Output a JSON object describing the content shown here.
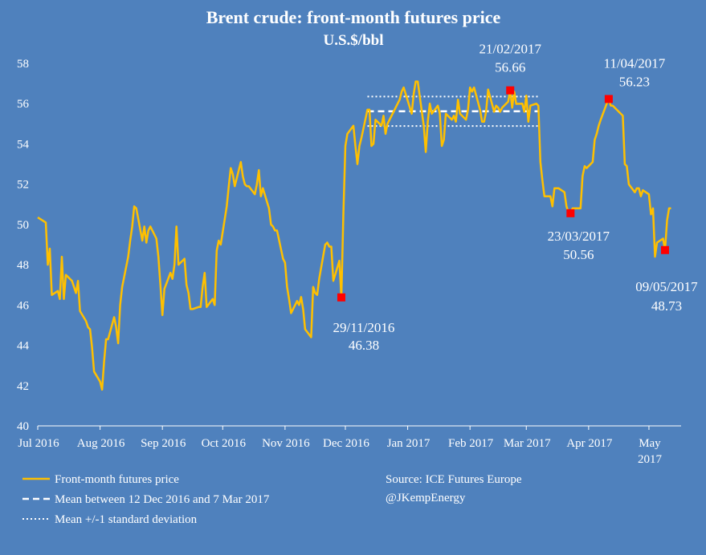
{
  "chart_data": {
    "type": "line",
    "title": "Brent crude: front-month futures price",
    "subtitle": "U.S.$/bbl",
    "ylim": [
      40,
      58
    ],
    "yticks": [
      40,
      42,
      44,
      46,
      48,
      50,
      52,
      54,
      56,
      58
    ],
    "xlim": [
      "2016-07-01",
      "2017-05-17"
    ],
    "grid": false,
    "x_ticks": [
      {
        "date": "2016-07-01",
        "label": "Jul 2016"
      },
      {
        "date": "2016-08-01",
        "label": "Aug 2016"
      },
      {
        "date": "2016-09-01",
        "label": "Sep 2016"
      },
      {
        "date": "2016-10-01",
        "label": "Oct 2016"
      },
      {
        "date": "2016-11-01",
        "label": "Nov 2016"
      },
      {
        "date": "2016-12-01",
        "label": "Dec 2016"
      },
      {
        "date": "2017-01-01",
        "label": "Jan 2017"
      },
      {
        "date": "2017-02-01",
        "label": "Feb 2017"
      },
      {
        "date": "2017-03-01",
        "label": "Mar 2017"
      },
      {
        "date": "2017-04-01",
        "label": "Apr 2017"
      },
      {
        "date": "2017-05-01",
        "label": "May 2017"
      }
    ],
    "series": [
      {
        "name": "Front-month futures price",
        "color": "#ffc000",
        "points": [
          [
            "2016-07-01",
            50.35
          ],
          [
            "2016-07-05",
            50.1
          ],
          [
            "2016-07-06",
            48.0
          ],
          [
            "2016-07-07",
            48.8
          ],
          [
            "2016-07-08",
            46.5
          ],
          [
            "2016-07-11",
            46.7
          ],
          [
            "2016-07-12",
            46.3
          ],
          [
            "2016-07-13",
            48.4
          ],
          [
            "2016-07-14",
            46.3
          ],
          [
            "2016-07-15",
            47.5
          ],
          [
            "2016-07-18",
            47.2
          ],
          [
            "2016-07-19",
            46.9
          ],
          [
            "2016-07-20",
            46.6
          ],
          [
            "2016-07-21",
            47.2
          ],
          [
            "2016-07-22",
            45.7
          ],
          [
            "2016-07-25",
            45.2
          ],
          [
            "2016-07-26",
            44.9
          ],
          [
            "2016-07-27",
            44.8
          ],
          [
            "2016-07-28",
            43.9
          ],
          [
            "2016-07-29",
            42.7
          ],
          [
            "2016-08-01",
            42.2
          ],
          [
            "2016-08-02",
            41.8
          ],
          [
            "2016-08-03",
            43.2
          ],
          [
            "2016-08-04",
            44.3
          ],
          [
            "2016-08-05",
            44.3
          ],
          [
            "2016-08-08",
            45.4
          ],
          [
            "2016-08-09",
            44.9
          ],
          [
            "2016-08-10",
            44.1
          ],
          [
            "2016-08-11",
            46.0
          ],
          [
            "2016-08-12",
            46.9
          ],
          [
            "2016-08-15",
            48.4
          ],
          [
            "2016-08-16",
            49.2
          ],
          [
            "2016-08-17",
            49.9
          ],
          [
            "2016-08-18",
            50.9
          ],
          [
            "2016-08-19",
            50.8
          ],
          [
            "2016-08-22",
            49.2
          ],
          [
            "2016-08-23",
            49.9
          ],
          [
            "2016-08-24",
            49.1
          ],
          [
            "2016-08-25",
            49.7
          ],
          [
            "2016-08-26",
            49.9
          ],
          [
            "2016-08-29",
            49.3
          ],
          [
            "2016-08-30",
            48.4
          ],
          [
            "2016-08-31",
            47.0
          ],
          [
            "2016-09-01",
            45.5
          ],
          [
            "2016-09-02",
            46.8
          ],
          [
            "2016-09-05",
            47.6
          ],
          [
            "2016-09-06",
            47.3
          ],
          [
            "2016-09-07",
            48.0
          ],
          [
            "2016-09-08",
            49.9
          ],
          [
            "2016-09-09",
            48.0
          ],
          [
            "2016-09-12",
            48.3
          ],
          [
            "2016-09-13",
            47.0
          ],
          [
            "2016-09-14",
            46.6
          ],
          [
            "2016-09-15",
            45.8
          ],
          [
            "2016-09-16",
            45.8
          ],
          [
            "2016-09-19",
            45.9
          ],
          [
            "2016-09-20",
            45.9
          ],
          [
            "2016-09-21",
            46.9
          ],
          [
            "2016-09-22",
            47.6
          ],
          [
            "2016-09-23",
            45.9
          ],
          [
            "2016-09-26",
            46.3
          ],
          [
            "2016-09-27",
            46.0
          ],
          [
            "2016-09-28",
            48.7
          ],
          [
            "2016-09-29",
            49.2
          ],
          [
            "2016-09-30",
            49.0
          ],
          [
            "2016-10-03",
            50.9
          ],
          [
            "2016-10-04",
            51.9
          ],
          [
            "2016-10-05",
            52.8
          ],
          [
            "2016-10-06",
            52.5
          ],
          [
            "2016-10-07",
            51.9
          ],
          [
            "2016-10-10",
            53.1
          ],
          [
            "2016-10-11",
            52.4
          ],
          [
            "2016-10-12",
            52.0
          ],
          [
            "2016-10-13",
            51.9
          ],
          [
            "2016-10-14",
            51.9
          ],
          [
            "2016-10-17",
            51.5
          ],
          [
            "2016-10-18",
            52.0
          ],
          [
            "2016-10-19",
            52.7
          ],
          [
            "2016-10-20",
            51.4
          ],
          [
            "2016-10-21",
            51.8
          ],
          [
            "2016-10-24",
            50.8
          ],
          [
            "2016-10-25",
            50.0
          ],
          [
            "2016-10-26",
            49.9
          ],
          [
            "2016-10-27",
            49.7
          ],
          [
            "2016-10-28",
            49.7
          ],
          [
            "2016-10-31",
            48.3
          ],
          [
            "2016-11-01",
            48.1
          ],
          [
            "2016-11-02",
            46.9
          ],
          [
            "2016-11-03",
            46.3
          ],
          [
            "2016-11-04",
            45.6
          ],
          [
            "2016-11-07",
            46.2
          ],
          [
            "2016-11-08",
            46.0
          ],
          [
            "2016-11-09",
            46.4
          ],
          [
            "2016-11-10",
            45.8
          ],
          [
            "2016-11-11",
            44.8
          ],
          [
            "2016-11-14",
            44.4
          ],
          [
            "2016-11-15",
            46.9
          ],
          [
            "2016-11-16",
            46.6
          ],
          [
            "2016-11-17",
            46.5
          ],
          [
            "2016-11-18",
            47.3
          ],
          [
            "2016-11-21",
            49.0
          ],
          [
            "2016-11-22",
            49.1
          ],
          [
            "2016-11-23",
            48.9
          ],
          [
            "2016-11-24",
            48.9
          ],
          [
            "2016-11-25",
            47.2
          ],
          [
            "2016-11-28",
            48.2
          ],
          [
            "2016-11-29",
            46.38
          ],
          [
            "2016-11-30",
            50.5
          ],
          [
            "2016-12-01",
            53.9
          ],
          [
            "2016-12-02",
            54.5
          ],
          [
            "2016-12-05",
            54.9
          ],
          [
            "2016-12-06",
            53.9
          ],
          [
            "2016-12-07",
            53.0
          ],
          [
            "2016-12-08",
            53.9
          ],
          [
            "2016-12-09",
            54.3
          ],
          [
            "2016-12-12",
            55.7
          ],
          [
            "2016-12-13",
            55.7
          ],
          [
            "2016-12-14",
            53.9
          ],
          [
            "2016-12-15",
            54.0
          ],
          [
            "2016-12-16",
            55.2
          ],
          [
            "2016-12-19",
            54.9
          ],
          [
            "2016-12-20",
            55.4
          ],
          [
            "2016-12-21",
            54.5
          ],
          [
            "2016-12-22",
            55.0
          ],
          [
            "2016-12-23",
            55.2
          ],
          [
            "2016-12-28",
            56.2
          ],
          [
            "2016-12-29",
            56.6
          ],
          [
            "2016-12-30",
            56.8
          ],
          [
            "2017-01-03",
            55.5
          ],
          [
            "2017-01-04",
            56.5
          ],
          [
            "2017-01-05",
            57.1
          ],
          [
            "2017-01-06",
            57.1
          ],
          [
            "2017-01-09",
            54.9
          ],
          [
            "2017-01-10",
            53.6
          ],
          [
            "2017-01-11",
            55.1
          ],
          [
            "2017-01-12",
            56.0
          ],
          [
            "2017-01-13",
            55.5
          ],
          [
            "2017-01-16",
            55.9
          ],
          [
            "2017-01-17",
            55.5
          ],
          [
            "2017-01-18",
            53.9
          ],
          [
            "2017-01-19",
            54.2
          ],
          [
            "2017-01-20",
            55.5
          ],
          [
            "2017-01-23",
            55.2
          ],
          [
            "2017-01-24",
            55.4
          ],
          [
            "2017-01-25",
            55.1
          ],
          [
            "2017-01-26",
            56.2
          ],
          [
            "2017-01-27",
            55.5
          ],
          [
            "2017-01-30",
            55.2
          ],
          [
            "2017-01-31",
            55.7
          ],
          [
            "2017-02-01",
            56.8
          ],
          [
            "2017-02-02",
            56.6
          ],
          [
            "2017-02-03",
            56.8
          ],
          [
            "2017-02-06",
            55.7
          ],
          [
            "2017-02-07",
            55.1
          ],
          [
            "2017-02-08",
            55.1
          ],
          [
            "2017-02-09",
            55.6
          ],
          [
            "2017-02-10",
            56.7
          ],
          [
            "2017-02-13",
            55.6
          ],
          [
            "2017-02-14",
            55.9
          ],
          [
            "2017-02-15",
            55.8
          ],
          [
            "2017-02-16",
            55.6
          ],
          [
            "2017-02-17",
            55.8
          ],
          [
            "2017-02-20",
            56.1
          ],
          [
            "2017-02-21",
            56.66
          ],
          [
            "2017-02-22",
            55.8
          ],
          [
            "2017-02-23",
            56.6
          ],
          [
            "2017-02-24",
            55.99
          ],
          [
            "2017-02-27",
            56.0
          ],
          [
            "2017-02-28",
            55.6
          ],
          [
            "2017-03-01",
            56.4
          ],
          [
            "2017-03-02",
            55.1
          ],
          [
            "2017-03-03",
            55.9
          ],
          [
            "2017-03-06",
            56.0
          ],
          [
            "2017-03-07",
            55.9
          ],
          [
            "2017-03-08",
            53.1
          ],
          [
            "2017-03-09",
            52.2
          ],
          [
            "2017-03-10",
            51.4
          ],
          [
            "2017-03-13",
            51.4
          ],
          [
            "2017-03-14",
            50.9
          ],
          [
            "2017-03-15",
            51.8
          ],
          [
            "2017-03-16",
            51.8
          ],
          [
            "2017-03-17",
            51.8
          ],
          [
            "2017-03-20",
            51.6
          ],
          [
            "2017-03-21",
            50.9
          ],
          [
            "2017-03-22",
            50.6
          ],
          [
            "2017-03-23",
            50.56
          ],
          [
            "2017-03-24",
            50.8
          ],
          [
            "2017-03-27",
            50.8
          ],
          [
            "2017-03-28",
            50.8
          ],
          [
            "2017-03-29",
            52.4
          ],
          [
            "2017-03-30",
            52.9
          ],
          [
            "2017-03-31",
            52.8
          ],
          [
            "2017-04-03",
            53.1
          ],
          [
            "2017-04-04",
            54.2
          ],
          [
            "2017-04-05",
            54.5
          ],
          [
            "2017-04-06",
            54.9
          ],
          [
            "2017-04-07",
            55.2
          ],
          [
            "2017-04-10",
            56.0
          ],
          [
            "2017-04-11",
            56.23
          ],
          [
            "2017-04-12",
            55.9
          ],
          [
            "2017-04-13",
            55.9
          ],
          [
            "2017-04-18",
            55.4
          ],
          [
            "2017-04-19",
            53.0
          ],
          [
            "2017-04-20",
            52.9
          ],
          [
            "2017-04-21",
            52.0
          ],
          [
            "2017-04-24",
            51.6
          ],
          [
            "2017-04-25",
            51.8
          ],
          [
            "2017-04-26",
            51.8
          ],
          [
            "2017-04-27",
            51.4
          ],
          [
            "2017-04-28",
            51.7
          ],
          [
            "2017-05-01",
            51.5
          ],
          [
            "2017-05-02",
            50.5
          ],
          [
            "2017-05-03",
            50.8
          ],
          [
            "2017-05-04",
            48.4
          ],
          [
            "2017-05-05",
            49.1
          ],
          [
            "2017-05-08",
            49.3
          ],
          [
            "2017-05-09",
            48.73
          ],
          [
            "2017-05-10",
            50.2
          ],
          [
            "2017-05-11",
            50.8
          ],
          [
            "2017-05-12",
            50.8
          ]
        ]
      }
    ],
    "reference_lines": {
      "start": "2016-12-12",
      "end": "2017-03-07",
      "mean": 55.62,
      "upper": 56.35,
      "lower": 54.89,
      "mean_color": "#ffffff",
      "band_color": "#ffffff"
    },
    "markers": {
      "color": "#ff0000",
      "points": [
        {
          "date": "2016-11-29",
          "value": 46.38,
          "label_date": "29/11/2016",
          "label_value": "46.38"
        },
        {
          "date": "2017-02-21",
          "value": 56.66,
          "label_date": "21/02/2017",
          "label_value": "56.66"
        },
        {
          "date": "2017-03-23",
          "value": 50.56,
          "label_date": "23/03/2017",
          "label_value": "50.56"
        },
        {
          "date": "2017-04-11",
          "value": 56.23,
          "label_date": "11/04/2017",
          "label_value": "56.23"
        },
        {
          "date": "2017-05-09",
          "value": 48.73,
          "label_date": "09/05/2017",
          "label_value": "48.73"
        }
      ]
    },
    "legend": [
      {
        "label": "Front-month futures price",
        "style": "solid",
        "color": "#ffc000"
      },
      {
        "label": "Mean between 12 Dec 2016 and 7 Mar 2017",
        "style": "dashed",
        "color": "#ffffff"
      },
      {
        "label": "Mean +/-1 standard deviation",
        "style": "dotted",
        "color": "#ffffff"
      }
    ],
    "source": [
      "Source: ICE Futures Europe",
      "@JKempEnergy"
    ],
    "background": "#4f81bd"
  }
}
